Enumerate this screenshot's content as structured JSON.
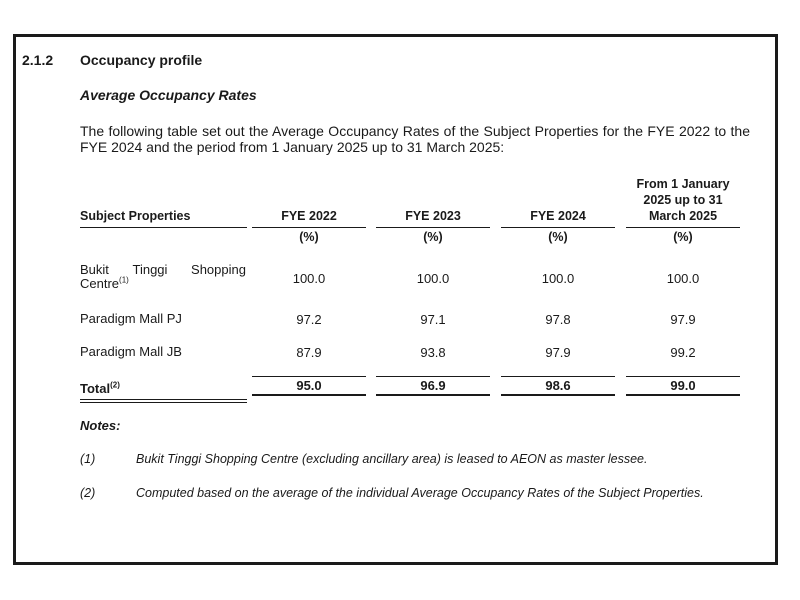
{
  "section": {
    "number": "2.1.2",
    "title": "Occupancy profile",
    "subheading": "Average Occupancy Rates",
    "intro": "The following table set out the Average Occupancy Rates of the Subject Properties for the FYE 2022 to the FYE 2024 and the period from 1 January 2025 up to 31 March 2025:"
  },
  "table": {
    "property_header": "Subject Properties",
    "columns": [
      "FYE 2022",
      "FYE 2023",
      "FYE 2024"
    ],
    "last_column_lines": [
      "From 1 January",
      "2025 up to 31",
      "March 2025"
    ],
    "unit": "(%)",
    "rows": [
      {
        "name_line1_words": [
          "Bukit",
          "Tinggi",
          "Shopping"
        ],
        "name_line2": "Centre",
        "marker": "(1)",
        "values": [
          "100.0",
          "100.0",
          "100.0",
          "100.0"
        ]
      },
      {
        "name": "Paradigm Mall PJ",
        "values": [
          "97.2",
          "97.1",
          "97.8",
          "97.9"
        ]
      },
      {
        "name": "Paradigm Mall JB",
        "values": [
          "87.9",
          "93.8",
          "97.9",
          "99.2"
        ]
      }
    ],
    "total": {
      "label": "Total",
      "marker": "(2)",
      "values": [
        "95.0",
        "96.9",
        "98.6",
        "99.0"
      ]
    }
  },
  "notes": {
    "heading": "Notes:",
    "items": [
      {
        "num": "(1)",
        "text": "Bukit Tinggi Shopping Centre (excluding ancillary area) is leased to AEON as master lessee."
      },
      {
        "num": "(2)",
        "text": "Computed based on the average of the individual Average Occupancy Rates of the Subject Properties."
      }
    ]
  }
}
